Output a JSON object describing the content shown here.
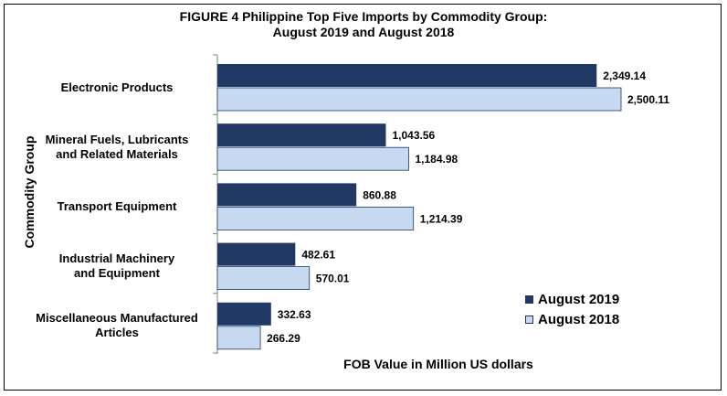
{
  "chart_data": {
    "type": "bar",
    "orientation": "horizontal",
    "title": "FIGURE 4  Philippine Top Five Imports by Commodity Group:",
    "subtitle": "August 2019 and August 2018",
    "xlabel": "FOB Value in Million US dollars",
    "ylabel": "Commodity Group",
    "categories": [
      {
        "lines": [
          "Electronic Products"
        ]
      },
      {
        "lines": [
          "Mineral Fuels, Lubricants",
          "and Related Materials"
        ]
      },
      {
        "lines": [
          "Transport Equipment"
        ]
      },
      {
        "lines": [
          "Industrial Machinery",
          "and Equipment"
        ]
      },
      {
        "lines": [
          "Miscellaneous Manufactured",
          "Articles"
        ]
      }
    ],
    "series": [
      {
        "name": "August 2019",
        "values": [
          2349.14,
          1043.56,
          860.88,
          482.61,
          332.63
        ],
        "labels": [
          "2,349.14",
          "1,043.56",
          "860.88",
          "482.61",
          "332.63"
        ],
        "color": "#1f3864"
      },
      {
        "name": "August 2018",
        "values": [
          2500.11,
          1184.98,
          1214.39,
          570.01,
          266.29
        ],
        "labels": [
          "2,500.11",
          "1,184.98",
          "1,214.39",
          "570.01",
          "266.29"
        ],
        "color": "#c6d9f1"
      }
    ],
    "xlim": [
      0,
      2800
    ],
    "grid": false,
    "legend_position": "bottom-right"
  }
}
